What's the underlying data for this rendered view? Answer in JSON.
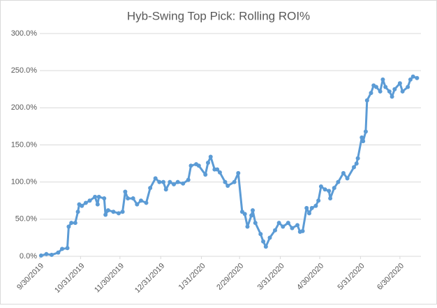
{
  "chart_data": {
    "type": "line",
    "title": "Hyb-Swing Top Pick: Rolling ROI%",
    "color": "#5b9bd5",
    "grid": true,
    "x": [
      "10/1/2019",
      "10/5/2019",
      "10/9/2019",
      "10/14/2019",
      "10/17/2019",
      "10/21/2019",
      "10/22/2019",
      "10/24/2019",
      "10/27/2019",
      "10/29/2019",
      "10/30/2019",
      "11/1/2019",
      "11/4/2019",
      "11/7/2019",
      "11/11/2019",
      "11/13/2019",
      "11/14/2019",
      "11/18/2019",
      "11/19/2019",
      "11/21/2019",
      "11/25/2019",
      "11/29/2019",
      "12/2/2019",
      "12/4/2019",
      "12/6/2019",
      "12/10/2019",
      "12/13/2019",
      "12/16/2019",
      "12/20/2019",
      "12/23/2019",
      "12/27/2019",
      "12/30/2019",
      "1/2/2020",
      "1/4/2020",
      "1/7/2020",
      "1/10/2020",
      "1/13/2020",
      "1/17/2020",
      "1/21/2020",
      "1/23/2020",
      "1/27/2020",
      "1/29/2020",
      "2/3/2020",
      "2/5/2020",
      "2/7/2020",
      "2/10/2020",
      "2/12/2020",
      "2/14/2020",
      "2/18/2020",
      "2/20/2020",
      "2/25/2020",
      "2/28/2020",
      "3/2/2020",
      "3/4/2020",
      "3/6/2020",
      "3/9/2020",
      "3/10/2020",
      "3/12/2020",
      "3/16/2020",
      "3/18/2020",
      "3/20/2020",
      "3/23/2020",
      "3/27/2020",
      "3/30/2020",
      "4/2/2020",
      "4/6/2020",
      "4/9/2020",
      "4/13/2020",
      "4/15/2020",
      "4/17/2020",
      "4/20/2020",
      "4/22/2020",
      "4/24/2020",
      "4/27/2020",
      "4/29/2020",
      "5/1/2020",
      "5/4/2020",
      "5/7/2020",
      "5/8/2020",
      "5/11/2020",
      "5/14/2020",
      "5/18/2020",
      "5/21/2020",
      "5/26/2020",
      "5/28/2020",
      "5/29/2020",
      "6/1/2020",
      "6/2/2020",
      "6/4/2020",
      "6/5/2020",
      "6/8/2020",
      "6/10/2020",
      "6/12/2020",
      "6/15/2020",
      "6/17/2020",
      "6/19/2020",
      "6/22/2020",
      "6/24/2020",
      "6/26/2020",
      "6/30/2020",
      "7/2/2020",
      "7/6/2020",
      "7/8/2020",
      "7/10/2020",
      "7/13/2020"
    ],
    "values": [
      1,
      3,
      2,
      5,
      10,
      11,
      40,
      45,
      45,
      60,
      70,
      68,
      72,
      75,
      80,
      70,
      80,
      78,
      56,
      62,
      60,
      58,
      60,
      87,
      78,
      78,
      70,
      75,
      72,
      92,
      105,
      100,
      100,
      90,
      100,
      97,
      100,
      98,
      103,
      122,
      124,
      122,
      110,
      126,
      134,
      117,
      117,
      113,
      100,
      95,
      100,
      112,
      60,
      57,
      40,
      55,
      62,
      45,
      30,
      20,
      13,
      25,
      35,
      45,
      40,
      45,
      38,
      42,
      33,
      34,
      65,
      58,
      65,
      68,
      75,
      94,
      90,
      88,
      78,
      92,
      100,
      112,
      105,
      120,
      125,
      132,
      160,
      155,
      168,
      210,
      220,
      230,
      228,
      222,
      238,
      228,
      222,
      215,
      225,
      233,
      222,
      228,
      238,
      242,
      240
    ],
    "xlim": [
      "9/30/2019",
      "7/16/2020"
    ],
    "xticks": [
      "9/30/2019",
      "10/31/2019",
      "11/30/2019",
      "12/31/2019",
      "1/31/2020",
      "2/29/2020",
      "3/31/2020",
      "4/30/2020",
      "5/31/2020",
      "6/30/2020"
    ],
    "ylim": [
      0,
      300
    ],
    "yticks": [
      {
        "value": 0,
        "label": "0.0%"
      },
      {
        "value": 50,
        "label": "50.0%"
      },
      {
        "value": 100,
        "label": "100.0%"
      },
      {
        "value": 150,
        "label": "150.0%"
      },
      {
        "value": 200,
        "label": "200.0%"
      },
      {
        "value": 250,
        "label": "250.0%"
      },
      {
        "value": 300,
        "label": "300.0%"
      }
    ]
  }
}
